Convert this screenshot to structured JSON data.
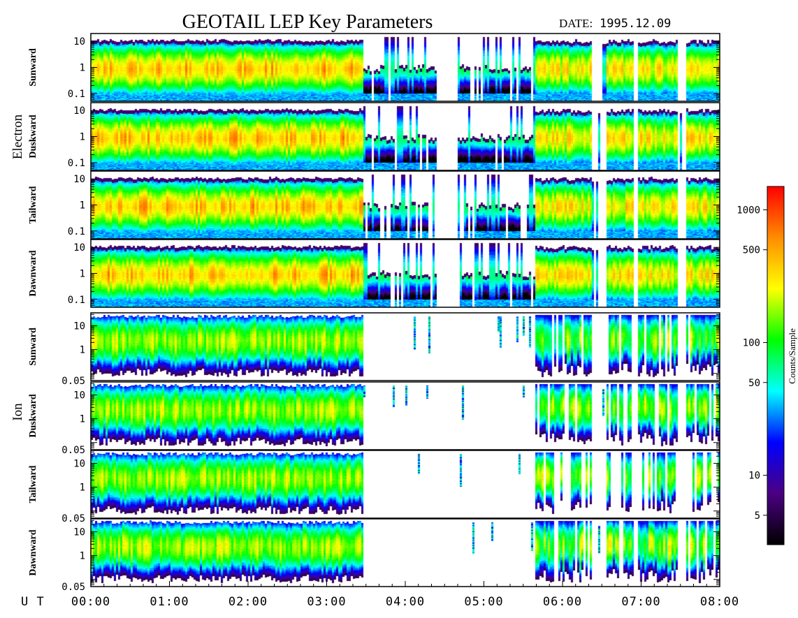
{
  "chart_data": {
    "type": "heatmap",
    "title": "GEOTAIL LEP Key Parameters",
    "date_label": "DATE:",
    "date_value": "1995.12.09",
    "x_axis_label": "U T",
    "x_ticks": [
      "00:00",
      "01:00",
      "02:00",
      "03:00",
      "04:00",
      "05:00",
      "06:00",
      "07:00",
      "08:00"
    ],
    "x_range_hours": [
      0,
      8
    ],
    "groups": [
      {
        "name": "Electron",
        "panels": [
          {
            "label": "Sunward",
            "y_ticks": [
              "10",
              "1",
              "0.1"
            ],
            "y_tick_values": [
              10,
              1,
              0.1
            ],
            "y_range_log": [
              0.05,
              20
            ]
          },
          {
            "label": "Duskward",
            "y_ticks": [
              "10",
              "1",
              "0.1"
            ],
            "y_tick_values": [
              10,
              1,
              0.1
            ],
            "y_range_log": [
              0.05,
              20
            ]
          },
          {
            "label": "Tailward",
            "y_ticks": [
              "10",
              "1",
              "0.1"
            ],
            "y_tick_values": [
              10,
              1,
              0.1
            ],
            "y_range_log": [
              0.05,
              20
            ]
          },
          {
            "label": "Dawnward",
            "y_ticks": [
              "10",
              "1",
              "0.1"
            ],
            "y_tick_values": [
              10,
              1,
              0.1
            ],
            "y_range_log": [
              0.05,
              20
            ]
          }
        ]
      },
      {
        "name": "Ion",
        "panels": [
          {
            "label": "Sunward",
            "y_ticks": [
              "10",
              "1",
              "0.05"
            ],
            "y_tick_values": [
              10,
              1,
              0.05
            ],
            "y_range_log": [
              0.05,
              35
            ]
          },
          {
            "label": "Duskward",
            "y_ticks": [
              "10",
              "1",
              "0.05"
            ],
            "y_tick_values": [
              10,
              1,
              0.05
            ],
            "y_range_log": [
              0.05,
              35
            ]
          },
          {
            "label": "Tailward",
            "y_ticks": [
              "10",
              "1",
              "0.05"
            ],
            "y_tick_values": [
              10,
              1,
              0.05
            ],
            "y_range_log": [
              0.05,
              35
            ]
          },
          {
            "label": "Dawnward",
            "y_ticks": [
              "10",
              "1",
              "0.05"
            ],
            "y_tick_values": [
              10,
              1,
              0.05
            ],
            "y_range_log": [
              0.05,
              35
            ]
          }
        ]
      }
    ],
    "colorbar": {
      "title": "Counts/Sample",
      "scale": "log",
      "range": [
        3,
        1500
      ],
      "ticks": [
        {
          "label": "1000",
          "value": 1000
        },
        {
          "label": "500",
          "value": 500
        },
        {
          "label": "100",
          "value": 100
        },
        {
          "label": "50",
          "value": 50
        },
        {
          "label": "10",
          "value": 10
        },
        {
          "label": "5",
          "value": 5
        }
      ],
      "colors": [
        "#000000",
        "#4b0082",
        "#0000ff",
        "#00ffff",
        "#00ff00",
        "#ffff00",
        "#ff8c00",
        "#ff0000"
      ]
    },
    "data_coverage": {
      "electron_continuous_hours": [
        0.0,
        3.45
      ],
      "electron_gaps_hours": [
        [
          4.4,
          4.65
        ]
      ],
      "ion_continuous_hours": [
        0.0,
        3.45
      ],
      "ion_sparse_hours": [
        [
          3.45,
          5.65
        ]
      ],
      "intermittent_segments_hours": [
        [
          5.65,
          6.35
        ],
        [
          6.55,
          6.9
        ],
        [
          6.95,
          7.45
        ],
        [
          7.55,
          8.0
        ]
      ]
    }
  }
}
